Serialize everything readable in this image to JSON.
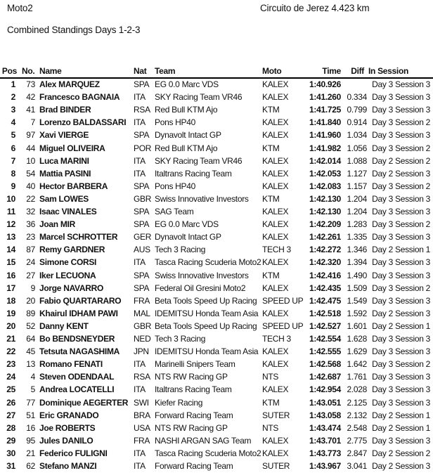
{
  "header": {
    "class": "Moto2",
    "circuit": "Circuito de Jerez 4.423 km",
    "subtitle": "Combined Standings Days 1-2-3"
  },
  "columns": {
    "pos": "Pos",
    "no": "No.",
    "name": "Name",
    "nat": "Nat",
    "team": "Team",
    "moto": "Moto",
    "time": "Time",
    "diff": "Diff",
    "session": "In Session"
  },
  "rows": [
    {
      "pos": "1",
      "no": "73",
      "name": "Alex MARQUEZ",
      "nat": "SPA",
      "team": "EG 0.0 Marc VDS",
      "moto": "KALEX",
      "time": "1:40.926",
      "diff": "",
      "session": "Day 3 Session 3"
    },
    {
      "pos": "2",
      "no": "42",
      "name": "Francesco BAGNAIA",
      "nat": "ITA",
      "team": "SKY Racing Team VR46",
      "moto": "KALEX",
      "time": "1:41.260",
      "diff": "0.334",
      "session": "Day 3 Session 3"
    },
    {
      "pos": "3",
      "no": "41",
      "name": "Brad BINDER",
      "nat": "RSA",
      "team": "Red Bull KTM Ajo",
      "moto": "KTM",
      "time": "1:41.725",
      "diff": "0.799",
      "session": "Day 3 Session 3"
    },
    {
      "pos": "4",
      "no": "7",
      "name": "Lorenzo BALDASSARI",
      "nat": "ITA",
      "team": "Pons HP40",
      "moto": "KALEX",
      "time": "1:41.840",
      "diff": "0.914",
      "session": "Day 3 Session 2"
    },
    {
      "pos": "5",
      "no": "97",
      "name": "Xavi VIERGE",
      "nat": "SPA",
      "team": "Dynavolt Intact GP",
      "moto": "KALEX",
      "time": "1:41.960",
      "diff": "1.034",
      "session": "Day 3 Session 3"
    },
    {
      "pos": "6",
      "no": "44",
      "name": "Miguel OLIVEIRA",
      "nat": "POR",
      "team": "Red Bull KTM Ajo",
      "moto": "KTM",
      "time": "1:41.982",
      "diff": "1.056",
      "session": "Day 3 Session 2"
    },
    {
      "pos": "7",
      "no": "10",
      "name": "Luca MARINI",
      "nat": "ITA",
      "team": "SKY Racing Team VR46",
      "moto": "KALEX",
      "time": "1:42.014",
      "diff": "1.088",
      "session": "Day 2 Session 2"
    },
    {
      "pos": "8",
      "no": "54",
      "name": "Mattia  PASINI",
      "nat": "ITA",
      "team": "Italtrans Racing Team",
      "moto": "KALEX",
      "time": "1:42.053",
      "diff": "1.127",
      "session": "Day 2 Session 3"
    },
    {
      "pos": "9",
      "no": "40",
      "name": "Hector BARBERA",
      "nat": "SPA",
      "team": "Pons HP40",
      "moto": "KALEX",
      "time": "1:42.083",
      "diff": "1.157",
      "session": "Day 3 Session 2"
    },
    {
      "pos": "10",
      "no": "22",
      "name": "Sam LOWES",
      "nat": "GBR",
      "team": "Swiss Innovative Investors",
      "moto": "KTM",
      "time": "1:42.130",
      "diff": "1.204",
      "session": "Day 3 Session 3"
    },
    {
      "pos": "11",
      "no": "32",
      "name": "Isaac VINALES",
      "nat": "SPA",
      "team": "SAG Team",
      "moto": "KALEX",
      "time": "1:42.130",
      "diff": "1.204",
      "session": "Day 3 Session 3"
    },
    {
      "pos": "12",
      "no": "36",
      "name": "Joan MIR",
      "nat": "SPA",
      "team": "EG 0.0 Marc VDS",
      "moto": "KALEX",
      "time": "1:42.209",
      "diff": "1.283",
      "session": "Day 3 Session 2"
    },
    {
      "pos": "13",
      "no": "23",
      "name": "Marcel SCHROTTER",
      "nat": "GER",
      "team": "Dynavolt Intact GP",
      "moto": "KALEX",
      "time": "1:42.261",
      "diff": "1.335",
      "session": "Day 3 Session 3"
    },
    {
      "pos": "14",
      "no": "87",
      "name": "Remy GARDNER",
      "nat": "AUS",
      "team": "Tech 3 Racing",
      "moto": "TECH 3",
      "time": "1:42.272",
      "diff": "1.346",
      "session": "Day 2 Session 1"
    },
    {
      "pos": "15",
      "no": "24",
      "name": "Simone CORSI",
      "nat": "ITA",
      "team": "Tasca Racing Scuderia Moto2",
      "moto": "KALEX",
      "time": "1:42.320",
      "diff": "1.394",
      "session": "Day 3 Session 3"
    },
    {
      "pos": "16",
      "no": "27",
      "name": "Iker LECUONA",
      "nat": "SPA",
      "team": "Swiss Innovative Investors",
      "moto": "KTM",
      "time": "1:42.416",
      "diff": "1.490",
      "session": "Day 3 Session 3"
    },
    {
      "pos": "17",
      "no": "9",
      "name": "Jorge NAVARRO",
      "nat": "SPA",
      "team": "Federal Oil Gresini Moto2",
      "moto": "KALEX",
      "time": "1:42.435",
      "diff": "1.509",
      "session": "Day 3 Session 2"
    },
    {
      "pos": "18",
      "no": "20",
      "name": "Fabio QUARTARARO",
      "nat": "FRA",
      "team": "Beta Tools Speed Up Racing",
      "moto": "SPEED UP",
      "time": "1:42.475",
      "diff": "1.549",
      "session": "Day 3 Session 3"
    },
    {
      "pos": "19",
      "no": "89",
      "name": "Khairul IDHAM PAWI",
      "nat": "MAL",
      "team": "IDEMITSU Honda Team Asia",
      "moto": "KALEX",
      "time": "1:42.518",
      "diff": "1.592",
      "session": "Day 2 Session 3"
    },
    {
      "pos": "20",
      "no": "52",
      "name": "Danny KENT",
      "nat": "GBR",
      "team": "Beta Tools Speed Up Racing",
      "moto": "SPEED UP",
      "time": "1:42.527",
      "diff": "1.601",
      "session": "Day 2 Session 1"
    },
    {
      "pos": "21",
      "no": "64",
      "name": "Bo BENDSNEYDER",
      "nat": "NED",
      "team": "Tech 3 Racing",
      "moto": "TECH 3",
      "time": "1:42.554",
      "diff": "1.628",
      "session": "Day 3 Session 3"
    },
    {
      "pos": "22",
      "no": "45",
      "name": "Tetsuta NAGASHIMA",
      "nat": "JPN",
      "team": "IDEMITSU Honda Team Asia",
      "moto": "KALEX",
      "time": "1:42.555",
      "diff": "1.629",
      "session": "Day 3 Session 3"
    },
    {
      "pos": "23",
      "no": "13",
      "name": "Romano FENATI",
      "nat": "ITA",
      "team": "Marinelli Snipers Team",
      "moto": "KALEX",
      "time": "1:42.568",
      "diff": "1.642",
      "session": "Day 3 Session 2"
    },
    {
      "pos": "24",
      "no": "4",
      "name": "Steven ODENDAAL",
      "nat": "RSA",
      "team": "NTS RW Racing GP",
      "moto": "NTS",
      "time": "1:42.687",
      "diff": "1.761",
      "session": "Day 3 Session 3"
    },
    {
      "pos": "25",
      "no": "5",
      "name": "Andrea LOCATELLI",
      "nat": "ITA",
      "team": "Italtrans Racing Team",
      "moto": "KALEX",
      "time": "1:42.954",
      "diff": "2.028",
      "session": "Day 3 Session 3"
    },
    {
      "pos": "26",
      "no": "77",
      "name": "Dominique AEGERTER",
      "nat": "SWI",
      "team": "Kiefer Racing",
      "moto": "KTM",
      "time": "1:43.051",
      "diff": "2.125",
      "session": "Day 3 Session 3"
    },
    {
      "pos": "27",
      "no": "51",
      "name": "Eric GRANADO",
      "nat": "BRA",
      "team": "Forward Racing Team",
      "moto": "SUTER",
      "time": "1:43.058",
      "diff": "2.132",
      "session": "Day 2 Session 1"
    },
    {
      "pos": "28",
      "no": "16",
      "name": "Joe ROBERTS",
      "nat": "USA",
      "team": "NTS RW Racing GP",
      "moto": "NTS",
      "time": "1:43.474",
      "diff": "2.548",
      "session": "Day 2 Session 1"
    },
    {
      "pos": "29",
      "no": "95",
      "name": "Jules DANILO",
      "nat": "FRA",
      "team": "NASHI ARGAN SAG Team",
      "moto": "KALEX",
      "time": "1:43.701",
      "diff": "2.775",
      "session": "Day 3 Session 3"
    },
    {
      "pos": "30",
      "no": "21",
      "name": "Federico FULIGNI",
      "nat": "ITA",
      "team": "Tasca Racing Scuderia Moto2",
      "moto": "KALEX",
      "time": "1:43.773",
      "diff": "2.847",
      "session": "Day 2 Session 2"
    },
    {
      "pos": "31",
      "no": "62",
      "name": "Stefano  MANZI",
      "nat": "ITA",
      "team": "Forward Racing Team",
      "moto": "SUTER",
      "time": "1:43.967",
      "diff": "3.041",
      "session": "Day 2 Session 3"
    }
  ]
}
